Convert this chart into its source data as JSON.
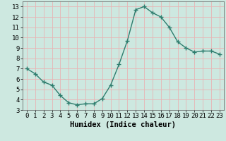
{
  "x": [
    0,
    1,
    2,
    3,
    4,
    5,
    6,
    7,
    8,
    9,
    10,
    11,
    12,
    13,
    14,
    15,
    16,
    17,
    18,
    19,
    20,
    21,
    22,
    23
  ],
  "y": [
    7.0,
    6.5,
    5.7,
    5.4,
    4.4,
    3.7,
    3.5,
    3.6,
    3.6,
    4.1,
    5.4,
    7.4,
    9.7,
    12.7,
    13.0,
    12.4,
    12.0,
    11.0,
    9.6,
    9.0,
    8.6,
    8.7,
    8.7,
    8.4
  ],
  "line_color": "#2e7d6e",
  "marker": "+",
  "marker_size": 4,
  "marker_lw": 1.0,
  "bg_color": "#cde8e0",
  "grid_color": "#e8b4b4",
  "xlabel": "Humidex (Indice chaleur)",
  "xlabel_fontsize": 7.5,
  "xlim": [
    -0.5,
    23.5
  ],
  "ylim": [
    3,
    13.5
  ],
  "yticks": [
    3,
    4,
    5,
    6,
    7,
    8,
    9,
    10,
    11,
    12,
    13
  ],
  "xticks": [
    0,
    1,
    2,
    3,
    4,
    5,
    6,
    7,
    8,
    9,
    10,
    11,
    12,
    13,
    14,
    15,
    16,
    17,
    18,
    19,
    20,
    21,
    22,
    23
  ],
  "tick_fontsize": 6.5,
  "linewidth": 1.0
}
